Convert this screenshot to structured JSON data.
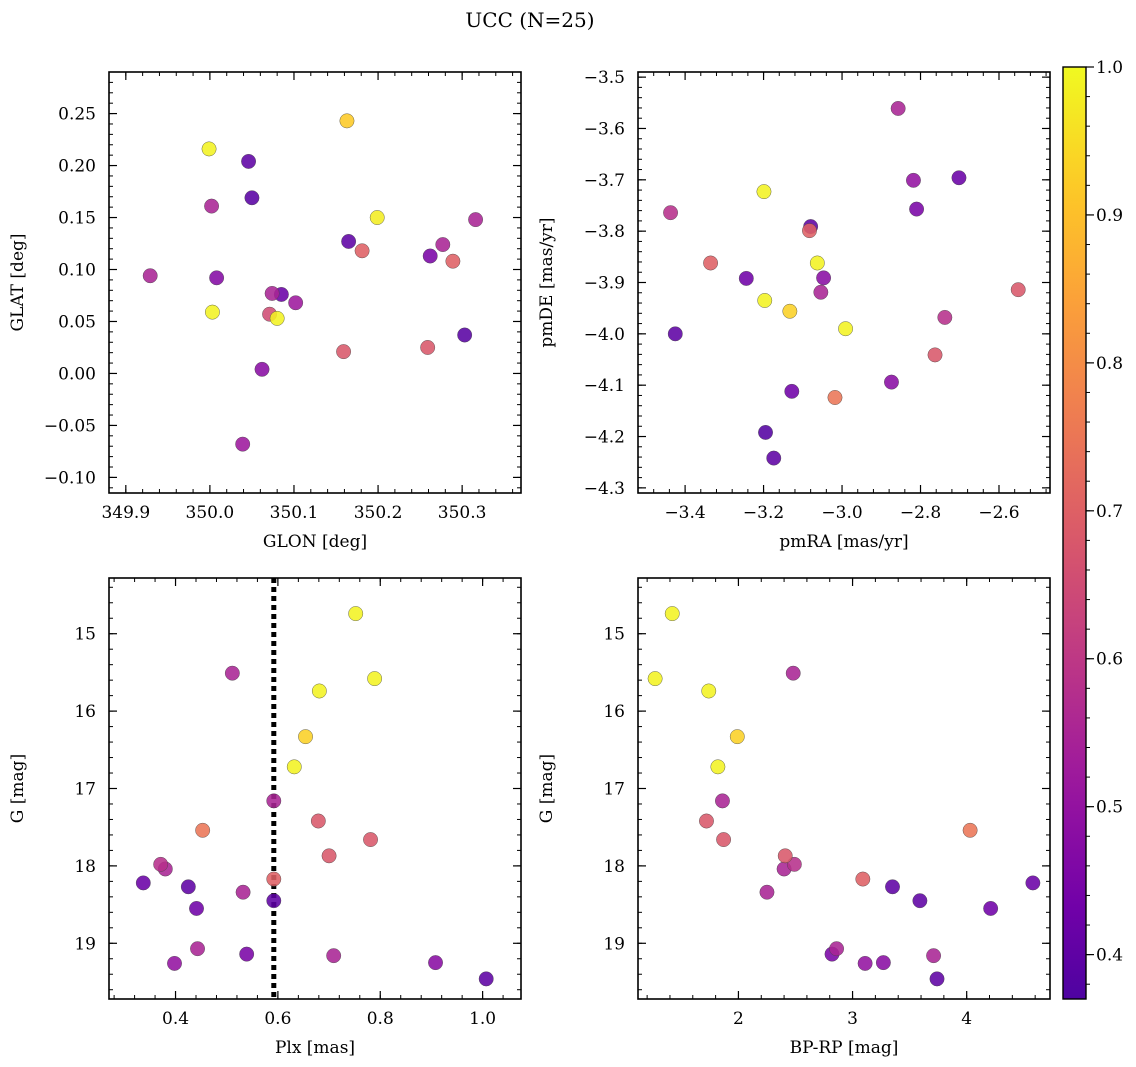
{
  "figure": {
    "title": "UCC (N=25)"
  },
  "colorbar": {
    "cmap": "plasma",
    "range": [
      0.37,
      1.0
    ],
    "ticks": [
      "0.4",
      "0.5",
      "0.6",
      "0.7",
      "0.8",
      "0.9",
      "1.0"
    ]
  },
  "chart_data": [
    {
      "type": "scatter",
      "xlabel": "GLON [deg]",
      "ylabel": "GLAT [deg]",
      "xlim": [
        349.88,
        350.37
      ],
      "ylim": [
        -0.115,
        0.29
      ],
      "xticks": [
        "349.9",
        "350.0",
        "350.1",
        "350.2",
        "350.3"
      ],
      "yticks": [
        "−0.10",
        "−0.05",
        "0.00",
        "0.05",
        "0.10",
        "0.15",
        "0.20",
        "0.25"
      ],
      "points": [
        {
          "x": 350.163,
          "y": 0.243,
          "c": 0.92
        },
        {
          "x": 349.999,
          "y": 0.216,
          "c": 0.99
        },
        {
          "x": 350.046,
          "y": 0.204,
          "c": 0.4
        },
        {
          "x": 350.05,
          "y": 0.169,
          "c": 0.39
        },
        {
          "x": 350.002,
          "y": 0.161,
          "c": 0.55
        },
        {
          "x": 350.199,
          "y": 0.15,
          "c": 0.98
        },
        {
          "x": 350.316,
          "y": 0.148,
          "c": 0.55
        },
        {
          "x": 350.165,
          "y": 0.127,
          "c": 0.4
        },
        {
          "x": 350.277,
          "y": 0.124,
          "c": 0.55
        },
        {
          "x": 350.181,
          "y": 0.118,
          "c": 0.7
        },
        {
          "x": 350.262,
          "y": 0.113,
          "c": 0.45
        },
        {
          "x": 350.289,
          "y": 0.108,
          "c": 0.7
        },
        {
          "x": 349.929,
          "y": 0.094,
          "c": 0.55
        },
        {
          "x": 350.008,
          "y": 0.092,
          "c": 0.47
        },
        {
          "x": 350.074,
          "y": 0.077,
          "c": 0.55
        },
        {
          "x": 350.085,
          "y": 0.076,
          "c": 0.42
        },
        {
          "x": 350.102,
          "y": 0.068,
          "c": 0.52
        },
        {
          "x": 350.003,
          "y": 0.059,
          "c": 0.99
        },
        {
          "x": 350.071,
          "y": 0.057,
          "c": 0.65
        },
        {
          "x": 350.08,
          "y": 0.053,
          "c": 0.99
        },
        {
          "x": 350.159,
          "y": 0.021,
          "c": 0.68
        },
        {
          "x": 350.259,
          "y": 0.025,
          "c": 0.68
        },
        {
          "x": 350.303,
          "y": 0.037,
          "c": 0.39
        },
        {
          "x": 350.062,
          "y": 0.004,
          "c": 0.48
        },
        {
          "x": 350.039,
          "y": -0.068,
          "c": 0.52
        }
      ]
    },
    {
      "type": "scatter",
      "xlabel": "pmRA [mas/yr]",
      "ylabel": "pmDE [mas/yr]",
      "xlim": [
        -3.52,
        -2.47
      ],
      "ylim": [
        -4.31,
        -3.49
      ],
      "xticks": [
        "−3.4",
        "−3.2",
        "−3.0",
        "−2.8",
        "−2.6"
      ],
      "yticks": [
        "−4.3",
        "−4.2",
        "−4.1",
        "−4.0",
        "−3.9",
        "−3.8",
        "−3.7",
        "−3.6",
        "−3.5"
      ],
      "points": [
        {
          "x": -2.857,
          "y": -3.561,
          "c": 0.55
        },
        {
          "x": -2.702,
          "y": -3.696,
          "c": 0.42
        },
        {
          "x": -2.818,
          "y": -3.701,
          "c": 0.5
        },
        {
          "x": -3.199,
          "y": -3.723,
          "c": 0.99
        },
        {
          "x": -2.81,
          "y": -3.757,
          "c": 0.45
        },
        {
          "x": -3.437,
          "y": -3.764,
          "c": 0.58
        },
        {
          "x": -3.08,
          "y": -3.791,
          "c": 0.4
        },
        {
          "x": -3.083,
          "y": -3.799,
          "c": 0.7
        },
        {
          "x": -3.335,
          "y": -3.862,
          "c": 0.7
        },
        {
          "x": -3.063,
          "y": -3.862,
          "c": 0.99
        },
        {
          "x": -3.244,
          "y": -3.892,
          "c": 0.43
        },
        {
          "x": -3.047,
          "y": -3.891,
          "c": 0.48
        },
        {
          "x": -2.551,
          "y": -3.914,
          "c": 0.68
        },
        {
          "x": -3.054,
          "y": -3.919,
          "c": 0.55
        },
        {
          "x": -3.197,
          "y": -3.935,
          "c": 0.99
        },
        {
          "x": -3.133,
          "y": -3.956,
          "c": 0.93
        },
        {
          "x": -2.738,
          "y": -3.968,
          "c": 0.58
        },
        {
          "x": -2.991,
          "y": -3.99,
          "c": 0.99
        },
        {
          "x": -3.425,
          "y": -4.0,
          "c": 0.4
        },
        {
          "x": -2.763,
          "y": -4.041,
          "c": 0.68
        },
        {
          "x": -2.874,
          "y": -4.094,
          "c": 0.48
        },
        {
          "x": -3.128,
          "y": -4.112,
          "c": 0.43
        },
        {
          "x": -3.018,
          "y": -4.124,
          "c": 0.75
        },
        {
          "x": -3.195,
          "y": -4.192,
          "c": 0.38
        },
        {
          "x": -3.174,
          "y": -4.242,
          "c": 0.4
        }
      ]
    },
    {
      "type": "scatter",
      "xlabel": "Plx [mas]",
      "ylabel": "G [mag]",
      "xlim": [
        0.27,
        1.075
      ],
      "ylim": [
        19.72,
        14.28
      ],
      "y_inverted": true,
      "xticks": [
        "0.4",
        "0.6",
        "0.8",
        "1.0"
      ],
      "yticks": [
        "15",
        "16",
        "17",
        "18",
        "19"
      ],
      "vline": {
        "x": 0.592,
        "style": "dotted",
        "color": "#000000"
      },
      "points": [
        {
          "x": 0.752,
          "y": 14.74,
          "c": 0.99
        },
        {
          "x": 0.511,
          "y": 15.51,
          "c": 0.55
        },
        {
          "x": 0.789,
          "y": 15.58,
          "c": 0.99
        },
        {
          "x": 0.681,
          "y": 15.74,
          "c": 0.99
        },
        {
          "x": 0.654,
          "y": 16.33,
          "c": 0.93
        },
        {
          "x": 0.632,
          "y": 16.72,
          "c": 0.99
        },
        {
          "x": 0.592,
          "y": 17.16,
          "c": 0.55
        },
        {
          "x": 0.679,
          "y": 17.42,
          "c": 0.68
        },
        {
          "x": 0.453,
          "y": 17.54,
          "c": 0.75
        },
        {
          "x": 0.781,
          "y": 17.66,
          "c": 0.68
        },
        {
          "x": 0.7,
          "y": 17.87,
          "c": 0.68
        },
        {
          "x": 0.371,
          "y": 17.98,
          "c": 0.58
        },
        {
          "x": 0.38,
          "y": 18.04,
          "c": 0.55
        },
        {
          "x": 0.592,
          "y": 18.17,
          "c": 0.7
        },
        {
          "x": 0.337,
          "y": 18.22,
          "c": 0.42
        },
        {
          "x": 0.425,
          "y": 18.27,
          "c": 0.4
        },
        {
          "x": 0.532,
          "y": 18.34,
          "c": 0.55
        },
        {
          "x": 0.592,
          "y": 18.45,
          "c": 0.4
        },
        {
          "x": 0.441,
          "y": 18.55,
          "c": 0.43
        },
        {
          "x": 0.443,
          "y": 19.07,
          "c": 0.55
        },
        {
          "x": 0.539,
          "y": 19.14,
          "c": 0.45
        },
        {
          "x": 0.709,
          "y": 19.16,
          "c": 0.55
        },
        {
          "x": 0.398,
          "y": 19.26,
          "c": 0.5
        },
        {
          "x": 0.908,
          "y": 19.25,
          "c": 0.48
        },
        {
          "x": 1.007,
          "y": 19.46,
          "c": 0.4
        }
      ]
    },
    {
      "type": "scatter",
      "xlabel": "BP-RP [mag]",
      "ylabel": "G [mag]",
      "xlim": [
        1.12,
        4.73
      ],
      "ylim": [
        19.72,
        14.28
      ],
      "y_inverted": true,
      "xticks": [
        "2",
        "3",
        "4"
      ],
      "yticks": [
        "15",
        "16",
        "17",
        "18",
        "19"
      ],
      "points": [
        {
          "x": 1.42,
          "y": 14.74,
          "c": 0.99
        },
        {
          "x": 1.27,
          "y": 15.58,
          "c": 0.99
        },
        {
          "x": 1.74,
          "y": 15.74,
          "c": 0.99
        },
        {
          "x": 2.48,
          "y": 15.51,
          "c": 0.55
        },
        {
          "x": 1.99,
          "y": 16.33,
          "c": 0.93
        },
        {
          "x": 1.82,
          "y": 16.72,
          "c": 0.99
        },
        {
          "x": 1.86,
          "y": 17.16,
          "c": 0.55
        },
        {
          "x": 1.72,
          "y": 17.42,
          "c": 0.68
        },
        {
          "x": 1.87,
          "y": 17.66,
          "c": 0.68
        },
        {
          "x": 4.03,
          "y": 17.54,
          "c": 0.75
        },
        {
          "x": 2.41,
          "y": 17.87,
          "c": 0.68
        },
        {
          "x": 2.4,
          "y": 18.04,
          "c": 0.55
        },
        {
          "x": 2.49,
          "y": 17.98,
          "c": 0.58
        },
        {
          "x": 3.09,
          "y": 18.17,
          "c": 0.7
        },
        {
          "x": 2.25,
          "y": 18.34,
          "c": 0.55
        },
        {
          "x": 3.35,
          "y": 18.27,
          "c": 0.4
        },
        {
          "x": 4.58,
          "y": 18.22,
          "c": 0.42
        },
        {
          "x": 3.59,
          "y": 18.45,
          "c": 0.4
        },
        {
          "x": 4.21,
          "y": 18.55,
          "c": 0.43
        },
        {
          "x": 2.86,
          "y": 19.07,
          "c": 0.55
        },
        {
          "x": 2.82,
          "y": 19.14,
          "c": 0.45
        },
        {
          "x": 3.71,
          "y": 19.16,
          "c": 0.55
        },
        {
          "x": 3.11,
          "y": 19.26,
          "c": 0.5
        },
        {
          "x": 3.27,
          "y": 19.25,
          "c": 0.48
        },
        {
          "x": 3.74,
          "y": 19.46,
          "c": 0.4
        }
      ]
    }
  ]
}
